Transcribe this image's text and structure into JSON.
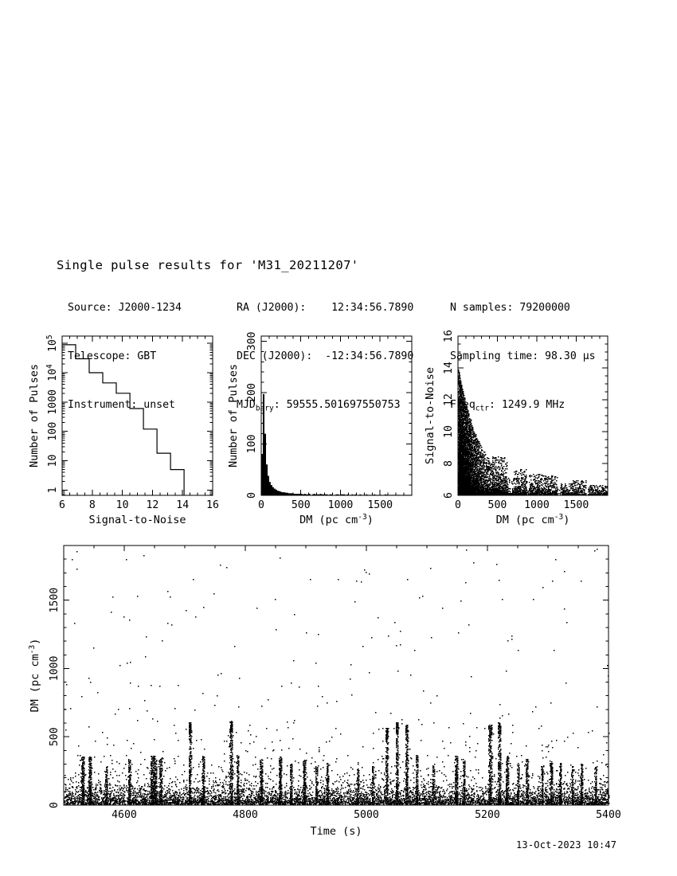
{
  "page": {
    "title": "Single pulse results for 'M31_20211207'",
    "timestamp": "13-Oct-2023 10:47"
  },
  "metadata": {
    "col1": [
      {
        "pre": "Source: J2000-1234",
        "sub": "",
        "post": ""
      },
      {
        "pre": "Telescope: GBT",
        "sub": "",
        "post": ""
      },
      {
        "pre": "Instrument: unset",
        "sub": "",
        "post": ""
      }
    ],
    "col2": [
      {
        "pre": "RA (J2000):    12:34:56.7890",
        "sub": "",
        "post": ""
      },
      {
        "pre": "DEC (J2000):  -12:34:56.7890",
        "sub": "",
        "post": ""
      },
      {
        "pre": "MJD",
        "sub": "bary",
        "post": ": 59555.501697550753"
      }
    ],
    "col3": [
      {
        "pre": "N samples: 79200000",
        "sub": "",
        "post": ""
      },
      {
        "pre": "Sampling time: 98.30 μs",
        "sub": "",
        "post": ""
      },
      {
        "pre": "Freq",
        "sub": "ctr",
        "post": ": 1249.9 MHz"
      }
    ]
  },
  "chart_data": [
    {
      "id": "pulses-vs-snr",
      "type": "bar",
      "subtype": "step-histogram-logy",
      "xlabel": "Signal-to-Noise",
      "ylabel": "Number of Pulses",
      "x_range": [
        6,
        16
      ],
      "x_major": [
        6,
        8,
        10,
        12,
        14,
        16
      ],
      "x_minor_step": 0.5,
      "y_log": true,
      "y_log10_range": [
        -0.18,
        5.25
      ],
      "y_major": [
        {
          "label": "1",
          "v": 1
        },
        {
          "label": "10",
          "v": 10
        },
        {
          "label": "100",
          "v": 100
        },
        {
          "label": "1000",
          "v": 1000
        },
        {
          "label": "10",
          "sup": "4",
          "v": 10000
        },
        {
          "label": "10",
          "sup": "5",
          "v": 100000
        }
      ],
      "bin_edges": [
        6.0,
        6.9,
        7.8,
        8.7,
        9.6,
        10.5,
        11.4,
        12.3,
        13.2,
        14.1
      ],
      "counts": [
        90000,
        30000,
        10000,
        4500,
        2000,
        600,
        120,
        18,
        5
      ]
    },
    {
      "id": "pulses-vs-dm",
      "type": "bar",
      "subtype": "filled-histogram",
      "xlabel": {
        "main": "DM (pc cm",
        "sup": "-3",
        "end": ")"
      },
      "ylabel": "Number of Pulses",
      "x_range": [
        0,
        1900
      ],
      "x_major": [
        0,
        500,
        1000,
        1500
      ],
      "x_minor_step": 100,
      "y_range": [
        0,
        310
      ],
      "y_major": [
        0,
        100,
        200,
        300
      ],
      "y_minor_step": 20,
      "bin_width": 20,
      "counts": [
        80,
        197,
        120,
        60,
        38,
        26,
        20,
        16,
        13,
        11,
        9,
        8,
        7,
        6,
        6,
        5,
        5,
        4,
        4,
        4,
        3,
        3,
        3,
        3,
        3,
        3,
        2,
        3,
        2,
        2,
        3,
        0,
        2,
        3,
        2,
        2,
        2,
        3,
        2,
        2,
        2,
        2,
        1,
        2,
        2,
        0,
        1,
        2,
        2,
        1,
        2,
        2,
        2,
        1,
        2,
        1,
        1,
        2,
        1,
        2,
        0,
        1,
        2,
        1,
        1,
        1,
        2,
        1,
        1,
        1,
        1,
        2,
        1,
        1,
        1,
        1,
        0,
        1,
        2,
        1,
        1,
        1,
        1,
        1,
        1,
        1,
        1,
        1,
        0,
        1,
        1,
        1,
        1,
        1,
        1
      ]
    },
    {
      "id": "snr-vs-dm",
      "type": "scatter",
      "subtype": "decay-cloud",
      "xlabel": {
        "main": "DM (pc cm",
        "sup": "-3",
        "end": ")"
      },
      "ylabel": "Signal-to-Noise",
      "x_range": [
        0,
        1900
      ],
      "x_major": [
        0,
        500,
        1000,
        1500
      ],
      "x_minor_step": 100,
      "y_range": [
        6,
        16
      ],
      "y_major": [
        6,
        8,
        10,
        12,
        14,
        16
      ],
      "y_minor_step": 0.5,
      "seed": 7,
      "cloud": {
        "n": 8000,
        "dm_scale": 130,
        "amp": 7.4,
        "scale": 280,
        "amp2": 0.5,
        "scale2": 1100,
        "pow": 2.2,
        "sn_peak": 13.6
      },
      "bottom_strip": {
        "n": 1300,
        "dm_scale": 330,
        "height": 0.55
      },
      "clusters": [
        [
          430,
          620,
          8.4,
          380
        ],
        [
          700,
          870,
          7.6,
          280
        ],
        [
          900,
          1070,
          7.3,
          260
        ],
        [
          1080,
          1260,
          7.2,
          240
        ],
        [
          1300,
          1450,
          6.7,
          140
        ],
        [
          1450,
          1620,
          6.9,
          170
        ],
        [
          1650,
          1900,
          6.6,
          190
        ]
      ]
    },
    {
      "id": "dm-vs-time",
      "type": "scatter",
      "subtype": "time-series-bursts",
      "xlabel": "Time (s)",
      "ylabel": {
        "main": "DM (pc cm",
        "sup": "-3",
        "end": ")"
      },
      "x_range": [
        4500,
        5400
      ],
      "x_major": [
        4600,
        4800,
        5000,
        5200,
        5400
      ],
      "x_minor_step": 50,
      "y_range": [
        0,
        1900
      ],
      "y_major": [
        0,
        500,
        1000,
        1500
      ],
      "y_minor_step": 100,
      "seed": 42,
      "background": {
        "n_base": 6500,
        "dm_scale": 48,
        "n_mid": 550,
        "mid_offset": 80,
        "mid_scale": 230,
        "n_high": 115,
        "high_range": [
          500,
          1870
        ]
      },
      "bursts": [
        [
          4531,
          350,
          240,
          2
        ],
        [
          4543,
          350,
          240,
          2
        ],
        [
          4570,
          280,
          110,
          1.5
        ],
        [
          4608,
          330,
          180,
          2
        ],
        [
          4648,
          355,
          380,
          5
        ],
        [
          4660,
          340,
          150,
          2
        ],
        [
          4708,
          600,
          290,
          2
        ],
        [
          4730,
          350,
          180,
          2
        ],
        [
          4776,
          610,
          320,
          2.5
        ],
        [
          4787,
          360,
          140,
          1.5
        ],
        [
          4826,
          330,
          180,
          2
        ],
        [
          4857,
          350,
          200,
          2
        ],
        [
          4875,
          300,
          120,
          1.5
        ],
        [
          4897,
          330,
          180,
          2
        ],
        [
          4917,
          280,
          100,
          1.5
        ],
        [
          4935,
          300,
          140,
          1.5
        ],
        [
          4985,
          260,
          100,
          1.5
        ],
        [
          5010,
          280,
          100,
          1.5
        ],
        [
          5033,
          560,
          240,
          2
        ],
        [
          5050,
          600,
          280,
          2
        ],
        [
          5066,
          580,
          240,
          2
        ],
        [
          5083,
          360,
          160,
          1.5
        ],
        [
          5110,
          300,
          110,
          1.5
        ],
        [
          5148,
          355,
          200,
          2
        ],
        [
          5161,
          330,
          160,
          1.5
        ],
        [
          5204,
          580,
          280,
          2.5
        ],
        [
          5219,
          600,
          280,
          2.5
        ],
        [
          5232,
          355,
          180,
          2
        ],
        [
          5250,
          300,
          120,
          1.5
        ],
        [
          5265,
          330,
          160,
          2
        ],
        [
          5290,
          280,
          110,
          1.5
        ],
        [
          5305,
          320,
          160,
          2
        ],
        [
          5320,
          300,
          130,
          1.5
        ],
        [
          5340,
          280,
          110,
          1.5
        ],
        [
          5355,
          300,
          140,
          1.5
        ],
        [
          5378,
          280,
          110,
          1.5
        ]
      ]
    }
  ]
}
